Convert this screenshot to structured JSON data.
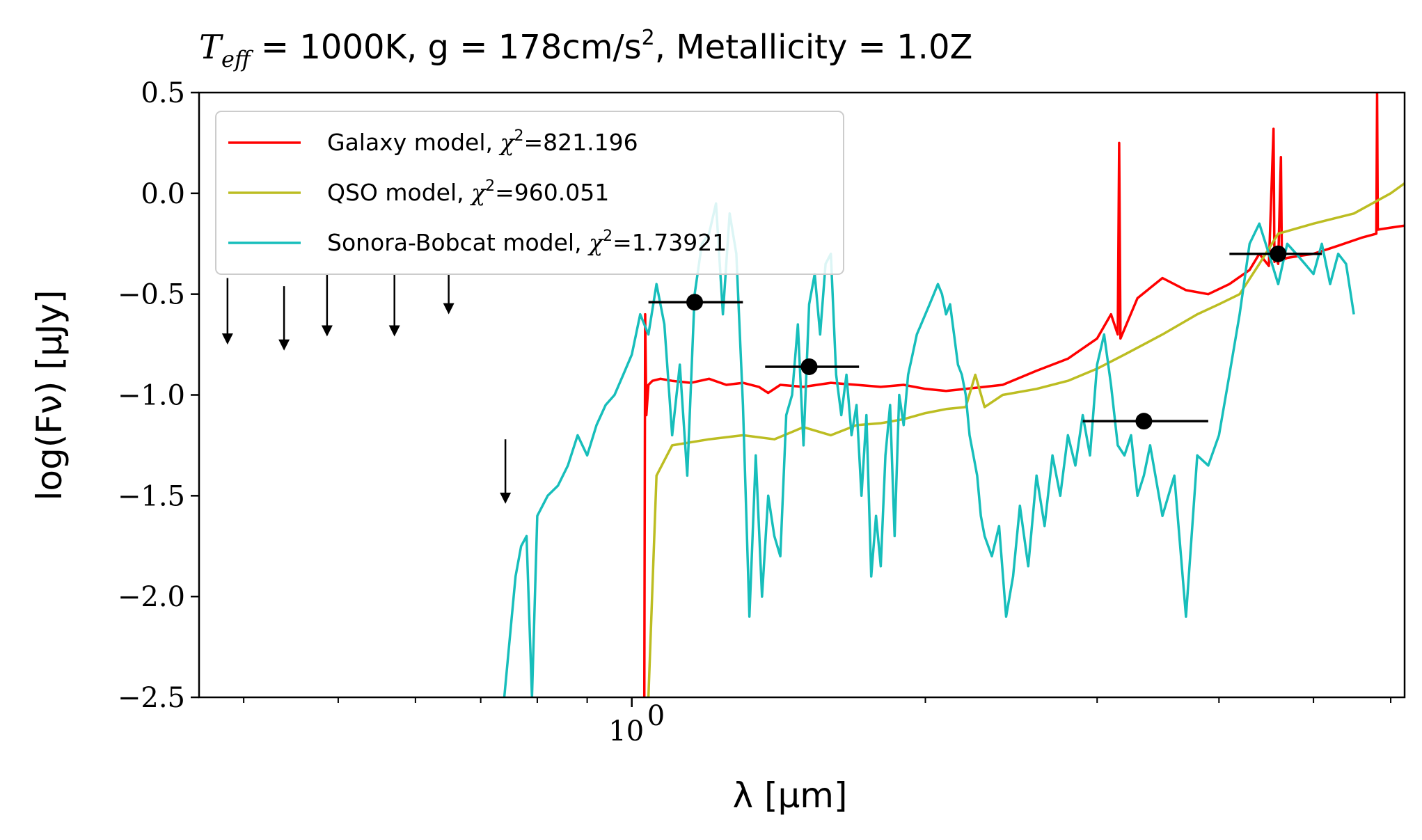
{
  "chart_data": {
    "type": "line",
    "title": "T_eff = 1000K, g = 178cm/s², Metallicity = 1.0Z",
    "title_parts": {
      "teff_symbol": "T",
      "teff_subscript": "eff",
      "rest": " = 1000K, g = 178cm/s",
      "superscript": "2",
      "tail": ", Metallicity = 1.0Z"
    },
    "xlabel": "λ [μm]",
    "ylabel": "log(Fν) [μJy]",
    "xscale": "log",
    "xlim": [
      0.36,
      6.2
    ],
    "ylim": [
      -2.5,
      0.5
    ],
    "grid": false,
    "legend_position": "top-left",
    "x_ticks": [
      {
        "value": 1.0,
        "label": "10",
        "sup": "0"
      }
    ],
    "y_ticks": [
      {
        "value": 0.5,
        "label": "0.5"
      },
      {
        "value": 0.0,
        "label": "0.0"
      },
      {
        "value": -0.5,
        "label": "−0.5"
      },
      {
        "value": -1.0,
        "label": "−1.0"
      },
      {
        "value": -1.5,
        "label": "−1.5"
      },
      {
        "value": -2.0,
        "label": "−2.0"
      },
      {
        "value": -2.5,
        "label": "−2.5"
      }
    ],
    "series": [
      {
        "name": "Galaxy model, χ²=821.196",
        "label_text": "Galaxy model, ",
        "chi_value": "=821.196",
        "color": "#ff0000",
        "x": [
          1.03,
          1.032,
          1.035,
          1.04,
          1.05,
          1.07,
          1.1,
          1.15,
          1.2,
          1.25,
          1.3,
          1.35,
          1.38,
          1.42,
          1.5,
          1.6,
          1.7,
          1.8,
          1.9,
          2.0,
          2.1,
          2.2,
          2.3,
          2.4,
          2.6,
          2.8,
          3.0,
          3.1,
          3.15,
          3.16,
          3.17,
          3.3,
          3.5,
          3.7,
          3.9,
          4.1,
          4.3,
          4.4,
          4.5,
          4.55,
          4.56,
          4.57,
          4.6,
          4.63,
          4.64,
          4.65,
          4.7,
          5.0,
          5.3,
          5.6,
          5.8,
          5.81,
          5.82,
          6.0,
          6.2
        ],
        "y": [
          -2.5,
          -0.6,
          -1.1,
          -0.95,
          -0.93,
          -0.92,
          -0.93,
          -0.94,
          -0.92,
          -0.95,
          -0.94,
          -0.96,
          -0.99,
          -0.95,
          -0.96,
          -0.94,
          -0.95,
          -0.96,
          -0.95,
          -0.97,
          -0.98,
          -0.97,
          -0.96,
          -0.95,
          -0.88,
          -0.82,
          -0.72,
          -0.6,
          -0.7,
          0.25,
          -0.72,
          -0.52,
          -0.42,
          -0.48,
          -0.5,
          -0.45,
          -0.38,
          -0.3,
          -0.36,
          0.32,
          -0.34,
          -0.31,
          -0.35,
          0.18,
          -0.3,
          -0.33,
          -0.32,
          -0.3,
          -0.26,
          -0.22,
          -0.2,
          0.5,
          -0.18,
          -0.17,
          -0.16
        ]
      },
      {
        "name": "QSO model, χ²=960.051",
        "label_text": "QSO model, ",
        "chi_value": "=960.051",
        "color": "#bcbd22",
        "x": [
          1.04,
          1.06,
          1.1,
          1.2,
          1.3,
          1.4,
          1.5,
          1.6,
          1.7,
          1.8,
          1.9,
          2.0,
          2.1,
          2.2,
          2.25,
          2.3,
          2.4,
          2.6,
          2.8,
          3.0,
          3.2,
          3.5,
          3.8,
          4.0,
          4.2,
          4.4,
          4.6,
          5.0,
          5.5,
          6.0,
          6.2
        ],
        "y": [
          -2.5,
          -1.4,
          -1.25,
          -1.22,
          -1.2,
          -1.22,
          -1.16,
          -1.2,
          -1.15,
          -1.14,
          -1.12,
          -1.09,
          -1.07,
          -1.06,
          -0.9,
          -1.06,
          -1.0,
          -0.97,
          -0.93,
          -0.87,
          -0.8,
          -0.7,
          -0.6,
          -0.55,
          -0.5,
          -0.35,
          -0.2,
          -0.15,
          -0.1,
          0.0,
          0.05
        ]
      },
      {
        "name": "Sonora-Bobcat model, χ²=1.73921",
        "label_text": "Sonora-Bobcat model, ",
        "chi_value": "=1.73921",
        "color": "#17bebb",
        "x": [
          0.74,
          0.75,
          0.76,
          0.77,
          0.78,
          0.79,
          0.8,
          0.82,
          0.84,
          0.86,
          0.88,
          0.9,
          0.92,
          0.94,
          0.96,
          0.98,
          1.0,
          1.02,
          1.04,
          1.06,
          1.08,
          1.1,
          1.12,
          1.14,
          1.16,
          1.18,
          1.2,
          1.22,
          1.24,
          1.26,
          1.28,
          1.3,
          1.32,
          1.34,
          1.36,
          1.38,
          1.4,
          1.42,
          1.44,
          1.46,
          1.48,
          1.5,
          1.52,
          1.54,
          1.56,
          1.58,
          1.6,
          1.62,
          1.64,
          1.66,
          1.68,
          1.7,
          1.72,
          1.74,
          1.76,
          1.78,
          1.8,
          1.82,
          1.84,
          1.86,
          1.88,
          1.9,
          1.92,
          1.94,
          1.96,
          1.98,
          2.0,
          2.02,
          2.04,
          2.06,
          2.08,
          2.1,
          2.12,
          2.14,
          2.16,
          2.18,
          2.2,
          2.22,
          2.24,
          2.26,
          2.28,
          2.3,
          2.34,
          2.38,
          2.42,
          2.46,
          2.5,
          2.55,
          2.6,
          2.65,
          2.7,
          2.75,
          2.8,
          2.85,
          2.9,
          2.95,
          3.0,
          3.05,
          3.1,
          3.15,
          3.2,
          3.25,
          3.3,
          3.35,
          3.4,
          3.5,
          3.6,
          3.7,
          3.8,
          3.9,
          4.0,
          4.1,
          4.2,
          4.3,
          4.4,
          4.5,
          4.6,
          4.7,
          4.8,
          4.9,
          5.0,
          5.1,
          5.2,
          5.3,
          5.4,
          5.5
        ],
        "y": [
          -2.5,
          -2.2,
          -1.9,
          -1.75,
          -1.7,
          -2.5,
          -1.6,
          -1.5,
          -1.45,
          -1.35,
          -1.2,
          -1.3,
          -1.15,
          -1.05,
          -1.0,
          -0.9,
          -0.8,
          -0.6,
          -0.7,
          -0.45,
          -0.65,
          -1.2,
          -0.85,
          -1.4,
          -0.5,
          -0.25,
          -0.2,
          -0.05,
          -0.6,
          -0.1,
          -0.3,
          -1.05,
          -2.1,
          -1.3,
          -2.0,
          -1.5,
          -1.7,
          -1.8,
          -1.1,
          -1.0,
          -0.65,
          -1.25,
          -0.55,
          -0.4,
          -0.7,
          -0.35,
          -0.3,
          -0.9,
          -1.1,
          -0.9,
          -1.2,
          -1.05,
          -1.5,
          -1.1,
          -1.9,
          -1.6,
          -1.85,
          -1.3,
          -1.05,
          -1.7,
          -1.0,
          -1.15,
          -0.9,
          -0.8,
          -0.7,
          -0.65,
          -0.6,
          -0.55,
          -0.5,
          -0.45,
          -0.5,
          -0.6,
          -0.55,
          -0.7,
          -0.85,
          -0.9,
          -1.0,
          -1.2,
          -1.3,
          -1.4,
          -1.6,
          -1.7,
          -1.8,
          -1.65,
          -2.1,
          -1.9,
          -1.55,
          -1.85,
          -1.4,
          -1.65,
          -1.3,
          -1.5,
          -1.2,
          -1.35,
          -1.1,
          -1.3,
          -0.85,
          -0.7,
          -0.95,
          -1.25,
          -1.3,
          -1.2,
          -1.5,
          -1.4,
          -1.25,
          -1.6,
          -1.4,
          -2.1,
          -1.3,
          -1.35,
          -1.2,
          -0.9,
          -0.6,
          -0.25,
          -0.15,
          -0.3,
          -0.45,
          -0.25,
          -0.3,
          -0.35,
          -0.4,
          -0.25,
          -0.45,
          -0.3,
          -0.35,
          -0.6
        ]
      }
    ],
    "photometry": {
      "color": "#000000",
      "points": [
        {
          "x": 1.16,
          "y": -0.54,
          "xerr": [
            1.04,
            1.3
          ]
        },
        {
          "x": 1.52,
          "y": -0.86,
          "xerr": [
            1.37,
            1.71
          ]
        },
        {
          "x": 3.35,
          "y": -1.13,
          "xerr": [
            2.9,
            3.9
          ]
        },
        {
          "x": 4.6,
          "y": -0.3,
          "xerr": [
            4.1,
            5.1
          ]
        }
      ]
    },
    "upper_limits": {
      "color": "#000000",
      "points": [
        {
          "x": 0.385,
          "y_top": -0.42,
          "y_bottom": -0.75
        },
        {
          "x": 0.44,
          "y_top": -0.46,
          "y_bottom": -0.78
        },
        {
          "x": 0.487,
          "y_top": -0.4,
          "y_bottom": -0.71
        },
        {
          "x": 0.571,
          "y_top": -0.4,
          "y_bottom": -0.71
        },
        {
          "x": 0.649,
          "y_top": -0.4,
          "y_bottom": -0.6
        },
        {
          "x": 0.742,
          "y_top": -1.22,
          "y_bottom": -1.54
        }
      ]
    }
  }
}
